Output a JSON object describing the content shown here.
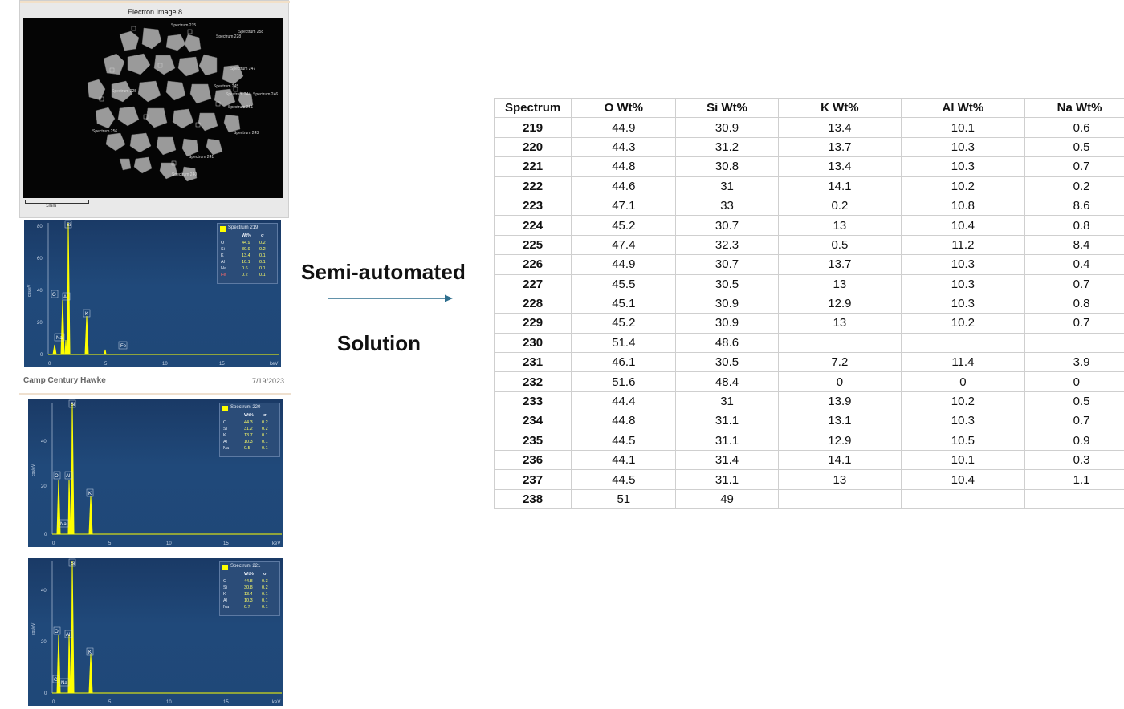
{
  "electron_image": {
    "title": "Electron Image 8",
    "scale_label": "1mm",
    "labels": [
      "Spectrum 215",
      "Spectrum 228",
      "Spectrum 258",
      "Spectrum 247",
      "Spectrum 245",
      "Spectrum 244",
      "Spectrum 246",
      "Spectrum 243",
      "Spectrum 256",
      "Spectrum 241",
      "Spectrum 240",
      "Spectrum 225",
      "Spectrum 251"
    ]
  },
  "spectra": [
    {
      "name": "Spectrum 219",
      "y_ticks": [
        "80",
        "60",
        "40",
        "20",
        "0"
      ],
      "x_ticks": [
        "0",
        "5",
        "10",
        "15",
        "keV"
      ],
      "ylabel": "cps/eV",
      "peaks": [
        {
          "label": "O"
        },
        {
          "label": "Si"
        },
        {
          "label": "Al"
        },
        {
          "label": "K"
        },
        {
          "label": "Na"
        },
        {
          "label": "Fe"
        }
      ],
      "legend_header": [
        "Wt%",
        "σ"
      ],
      "rows": [
        [
          "O",
          "44.9",
          "0.2"
        ],
        [
          "Si",
          "30.9",
          "0.2"
        ],
        [
          "K",
          "13.4",
          "0.1"
        ],
        [
          "Al",
          "10.1",
          "0.1"
        ],
        [
          "Na",
          "0.6",
          "0.1"
        ],
        [
          "Fe",
          "0.2",
          "0.1"
        ]
      ]
    },
    {
      "name": "Spectrum 220",
      "y_ticks": [
        "40",
        "20",
        "0"
      ],
      "x_ticks": [
        "0",
        "5",
        "10",
        "15",
        "keV"
      ],
      "ylabel": "cps/eV",
      "peaks": [
        {
          "label": "Si"
        },
        {
          "label": "O"
        },
        {
          "label": "Al"
        },
        {
          "label": "K"
        },
        {
          "label": "Na"
        }
      ],
      "legend_header": [
        "Wt%",
        "σ"
      ],
      "rows": [
        [
          "O",
          "44.3",
          "0.2"
        ],
        [
          "Si",
          "31.2",
          "0.2"
        ],
        [
          "K",
          "13.7",
          "0.1"
        ],
        [
          "Al",
          "10.3",
          "0.1"
        ],
        [
          "Na",
          "0.5",
          "0.1"
        ]
      ]
    },
    {
      "name": "Spectrum 221",
      "y_ticks": [
        "40",
        "20",
        "0"
      ],
      "x_ticks": [
        "0",
        "5",
        "10",
        "15",
        "keV"
      ],
      "ylabel": "cps/eV",
      "peaks": [
        {
          "label": "Si"
        },
        {
          "label": "O"
        },
        {
          "label": "Al"
        },
        {
          "label": "K"
        },
        {
          "label": "C"
        },
        {
          "label": "Na"
        }
      ],
      "legend_header": [
        "Wt%",
        "σ"
      ],
      "rows": [
        [
          "O",
          "44.8",
          "0.3"
        ],
        [
          "Si",
          "30.8",
          "0.2"
        ],
        [
          "K",
          "13.4",
          "0.1"
        ],
        [
          "Al",
          "10.3",
          "0.1"
        ],
        [
          "Na",
          "0.7",
          "0.1"
        ]
      ]
    }
  ],
  "footer": {
    "left": "Camp Century Hawke",
    "right": "7/19/2023"
  },
  "middle": {
    "line1": "Semi-automated",
    "line2": "Solution",
    "arrow_color": "#2e6f8e"
  },
  "table": {
    "headers": [
      "Spectrum",
      "O  Wt%",
      "Si Wt%",
      "K Wt%",
      "Al  Wt%",
      "Na Wt%"
    ],
    "rows": [
      [
        "219",
        "44.9",
        "30.9",
        "13.4",
        "10.1",
        "0.6"
      ],
      [
        "220",
        "44.3",
        "31.2",
        "13.7",
        "10.3",
        "0.5"
      ],
      [
        "221",
        "44.8",
        "30.8",
        "13.4",
        "10.3",
        "0.7"
      ],
      [
        "222",
        "44.6",
        "31",
        "14.1",
        "10.2",
        "0.2"
      ],
      [
        "223",
        "47.1",
        "33",
        "0.2",
        "10.8",
        "8.6"
      ],
      [
        "224",
        "45.2",
        "30.7",
        "13",
        "10.4",
        "0.8"
      ],
      [
        "225",
        "47.4",
        "32.3",
        "0.5",
        "11.2",
        "8.4"
      ],
      [
        "226",
        "44.9",
        "30.7",
        "13.7",
        "10.3",
        "0.4"
      ],
      [
        "227",
        "45.5",
        "30.5",
        "13",
        "10.3",
        "0.7"
      ],
      [
        "228",
        "45.1",
        "30.9",
        "12.9",
        "10.3",
        "0.8"
      ],
      [
        "229",
        "45.2",
        "30.9",
        "13",
        "10.2",
        "0.7"
      ],
      [
        "230",
        "51.4",
        "48.6",
        "",
        "",
        ""
      ],
      [
        "231",
        "46.1",
        "30.5",
        "7.2",
        "11.4",
        "3.9"
      ],
      [
        "232",
        "51.6",
        "48.4",
        "0",
        "0",
        "0"
      ],
      [
        "233",
        "44.4",
        "31",
        "13.9",
        "10.2",
        "0.5"
      ],
      [
        "234",
        "44.8",
        "31.1",
        "13.1",
        "10.3",
        "0.7"
      ],
      [
        "235",
        "44.5",
        "31.1",
        "12.9",
        "10.5",
        "0.9"
      ],
      [
        "236",
        "44.1",
        "31.4",
        "14.1",
        "10.1",
        "0.3"
      ],
      [
        "237",
        "44.5",
        "31.1",
        "13",
        "10.4",
        "1.1"
      ],
      [
        "238",
        "51",
        "49",
        "",
        "",
        ""
      ]
    ]
  },
  "colors": {
    "spectrum_bg": "#1f4878",
    "peak": "#ffff00",
    "legend_value": "#ffff66"
  }
}
